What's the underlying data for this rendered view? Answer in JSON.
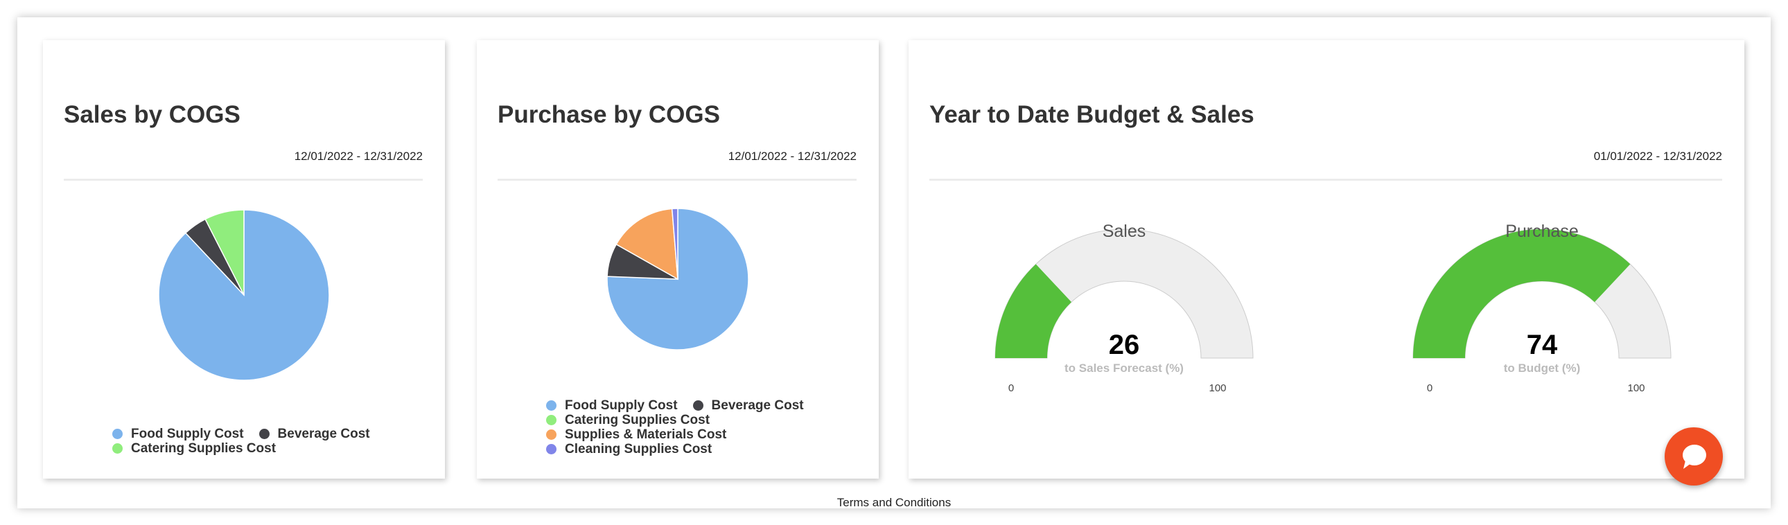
{
  "cards": {
    "sales": {
      "title": "Sales by COGS",
      "date_range": "12/01/2022 - 12/31/2022"
    },
    "purchase": {
      "title": "Purchase by COGS",
      "date_range": "12/01/2022 - 12/31/2022"
    },
    "ytd": {
      "title": "Year to Date Budget & Sales",
      "date_range": "01/01/2022 - 12/31/2022"
    }
  },
  "chart_data": [
    {
      "type": "pie",
      "categories": [
        "Food Supply Cost",
        "Beverage Cost",
        "Catering Supplies Cost"
      ],
      "values": [
        88,
        4.5,
        7.5
      ],
      "colors": [
        "#7cb3ec",
        "#434348",
        "#90ed7d"
      ],
      "legend": "bottom"
    },
    {
      "type": "pie",
      "categories": [
        "Food Supply Cost",
        "Beverage Cost",
        "Catering Supplies Cost",
        "Supplies & Materials Cost",
        "Cleaning Supplies Cost"
      ],
      "values": [
        75.6,
        7.6,
        0,
        15.5,
        1.3
      ],
      "colors": [
        "#7cb3ec",
        "#434348",
        "#90ed7d",
        "#f7a35c",
        "#8085e9"
      ],
      "legend": "bottom"
    },
    {
      "type": "gauge",
      "title": "Sales",
      "value": 26,
      "label": "to Sales Forecast (%)",
      "min": 0,
      "max": 100,
      "min_label": "0",
      "max_label": "100",
      "fill_color": "#55bf3b",
      "track_color": "#eeeeee"
    },
    {
      "type": "gauge",
      "title": "Purchase",
      "value": 74,
      "label": "to Budget (%)",
      "min": 0,
      "max": 100,
      "min_label": "0",
      "max_label": "100",
      "fill_color": "#55bf3b",
      "track_color": "#eeeeee"
    }
  ],
  "footer": {
    "terms": "Terms and Conditions"
  },
  "chat": {
    "icon": "chat-bubble-icon",
    "color": "#f04e23"
  }
}
